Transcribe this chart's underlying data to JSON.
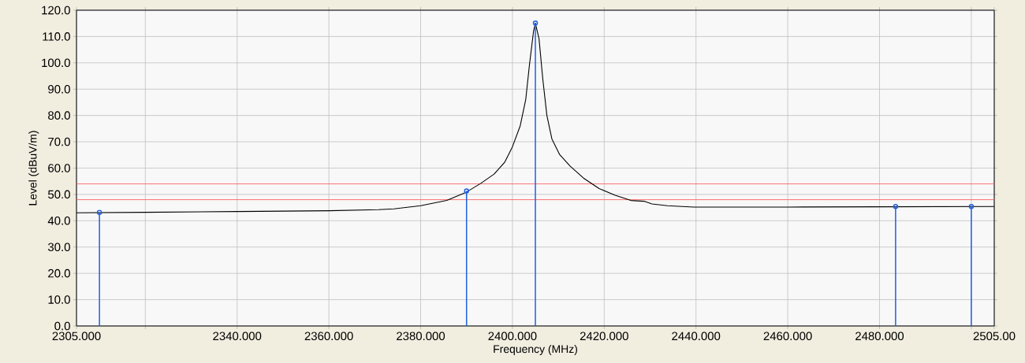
{
  "chart_data": {
    "type": "line",
    "xlabel": "Frequency (MHz)",
    "ylabel": "Level (dBuV/m)",
    "xlim": [
      2305,
      2505
    ],
    "ylim": [
      0,
      120
    ],
    "xticks": [
      {
        "value": 2305,
        "label": "2305.000"
      },
      {
        "value": 2320,
        "label": null
      },
      {
        "value": 2340,
        "label": "2340.000"
      },
      {
        "value": 2360,
        "label": "2360.000"
      },
      {
        "value": 2380,
        "label": "2380.000"
      },
      {
        "value": 2400,
        "label": "2400.000"
      },
      {
        "value": 2420,
        "label": "2420.000"
      },
      {
        "value": 2440,
        "label": "2440.000"
      },
      {
        "value": 2460,
        "label": "2460.000"
      },
      {
        "value": 2480,
        "label": "2480.000"
      },
      {
        "value": 2500,
        "label": null
      },
      {
        "value": 2505,
        "label": "2505.00"
      }
    ],
    "yticks": [
      {
        "value": 0,
        "label": "0.0"
      },
      {
        "value": 10,
        "label": "10.0"
      },
      {
        "value": 20,
        "label": "20.0"
      },
      {
        "value": 30,
        "label": "30.0"
      },
      {
        "value": 40,
        "label": "40.0"
      },
      {
        "value": 50,
        "label": "50.0"
      },
      {
        "value": 60,
        "label": "60.0"
      },
      {
        "value": 70,
        "label": "70.0"
      },
      {
        "value": 80,
        "label": "80.0"
      },
      {
        "value": 90,
        "label": "90.0"
      },
      {
        "value": 100,
        "label": "100.0"
      },
      {
        "value": 110,
        "label": "110.0"
      },
      {
        "value": 120,
        "label": "120.0"
      }
    ],
    "grid": true,
    "series": [
      {
        "color": "#000000",
        "marker": "none",
        "x": [
          2305,
          2320,
          2340,
          2360,
          2370.8,
          2374.2,
          2380,
          2385.7,
          2390,
          2393.1,
          2396,
          2398.3,
          2400,
          2401.7,
          2402.9,
          2403.7,
          2404.6,
          2405,
          2405.8,
          2406.6,
          2407.5,
          2408.6,
          2410.3,
          2412.6,
          2415.5,
          2418.9,
          2422.4,
          2425.8,
          2428.7,
          2430.4,
          2433.8,
          2439.5,
          2460,
          2480,
          2505
        ],
        "values": [
          43.0,
          43.2,
          43.5,
          43.8,
          44.2,
          44.5,
          45.7,
          47.7,
          50.9,
          54.2,
          57.7,
          62.2,
          68.1,
          76.1,
          86.1,
          99.1,
          112.0,
          115.1,
          109.1,
          94.1,
          80.1,
          71.1,
          65.1,
          60.7,
          56.2,
          52.2,
          49.7,
          47.7,
          47.4,
          46.4,
          45.7,
          45.2,
          45.2,
          45.3,
          45.4
        ]
      },
      {
        "type": "lollipop",
        "color": "#2060e0",
        "marker": "circle",
        "x": [
          2310,
          2390,
          2405,
          2483.5,
          2500
        ],
        "values": [
          43.2,
          51.3,
          115.1,
          45.4,
          45.4
        ]
      }
    ],
    "ref_lines": [
      {
        "axis": "y",
        "value": 54,
        "color": "#ff6060"
      },
      {
        "axis": "y",
        "value": 48,
        "color": "#ff6060"
      }
    ]
  }
}
